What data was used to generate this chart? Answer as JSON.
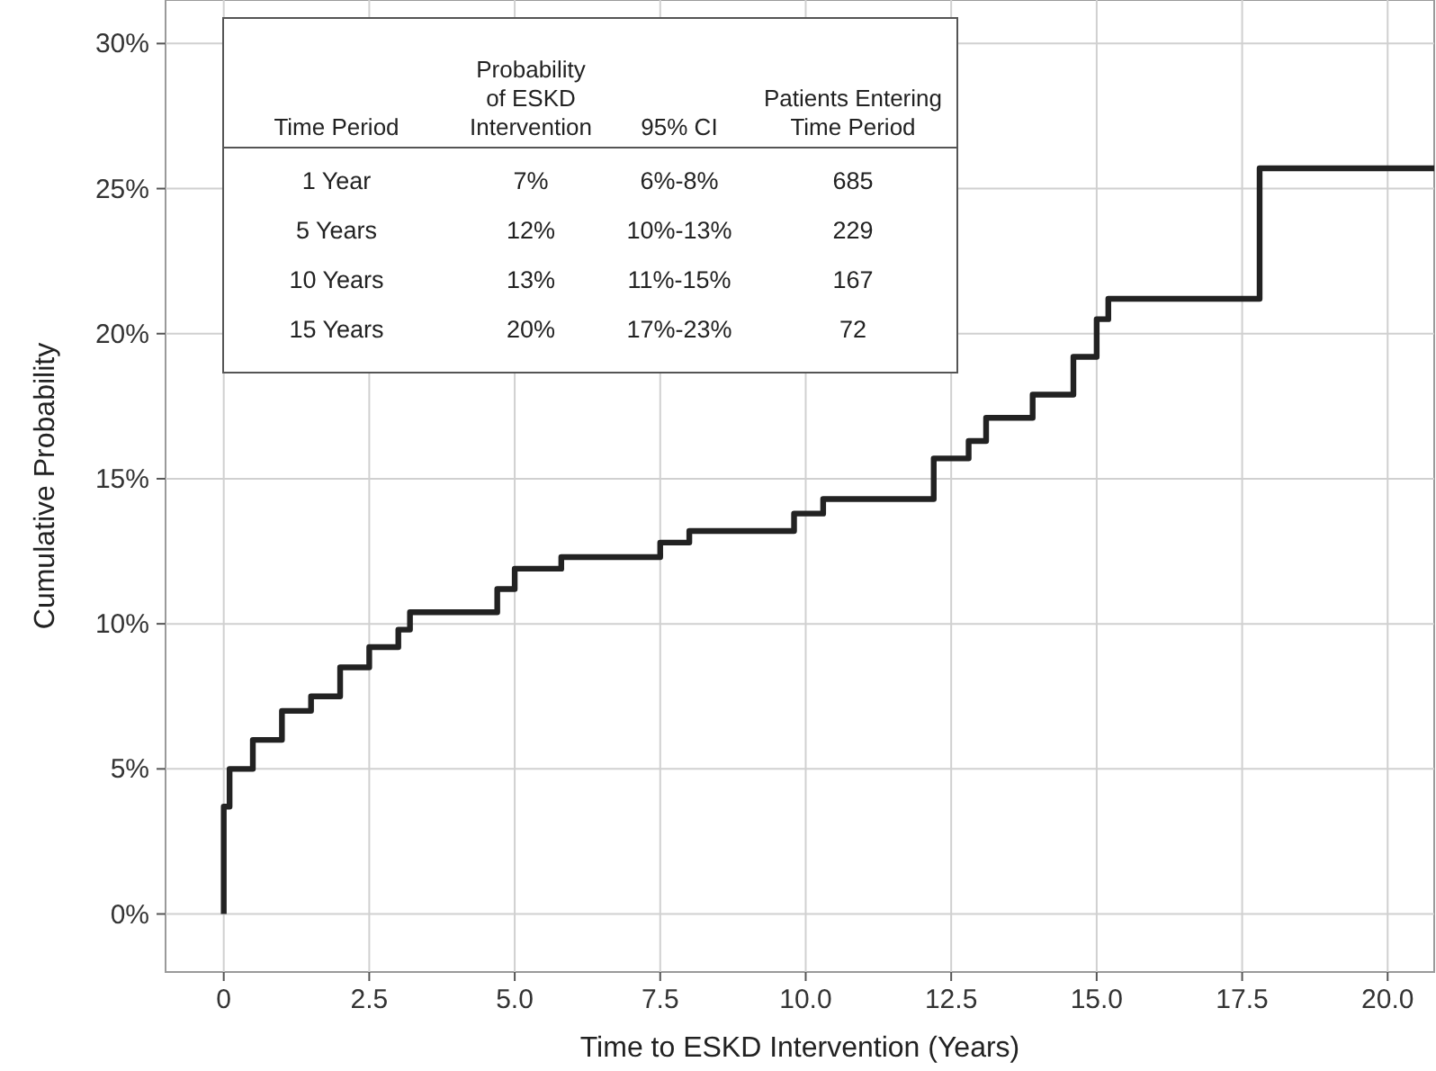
{
  "chart_data": {
    "type": "step",
    "xlabel": "Time to ESKD Intervention (Years)",
    "ylabel": "Cumulative Probability",
    "xlim": [
      -1.0,
      20.8
    ],
    "ylim": [
      -2,
      31.5
    ],
    "xticks": [
      {
        "value": 0,
        "label": "0"
      },
      2.5,
      {
        "value": 5,
        "label": "5.0"
      },
      7.5,
      {
        "value": 10,
        "label": "10.0"
      },
      12.5,
      {
        "value": 15,
        "label": "15.0"
      },
      17.5,
      {
        "value": 20,
        "label": "20.0"
      }
    ],
    "yticks": [
      {
        "value": 0,
        "label": "0%"
      },
      {
        "value": 5,
        "label": "5%"
      },
      {
        "value": 10,
        "label": "10%"
      },
      {
        "value": 15,
        "label": "15%"
      },
      {
        "value": 20,
        "label": "20%"
      },
      {
        "value": 25,
        "label": "25%"
      },
      {
        "value": 30,
        "label": "30%"
      }
    ],
    "grid": true,
    "line_style": "solid",
    "marker": "none",
    "series": [
      {
        "color": "#222222",
        "x": [
          0,
          0,
          0.1,
          0.5,
          1.0,
          1.5,
          2.0,
          2.5,
          3.0,
          3.2,
          4.7,
          5.0,
          5.8,
          7.5,
          8.0,
          9.8,
          10.3,
          12.2,
          12.8,
          13.1,
          13.9,
          14.6,
          15.0,
          15.2,
          17.8,
          20.8
        ],
        "values": [
          0,
          3.7,
          5.0,
          6.0,
          7.0,
          7.5,
          8.5,
          9.2,
          9.8,
          10.4,
          11.2,
          11.9,
          12.3,
          12.8,
          13.2,
          13.8,
          14.3,
          15.7,
          16.3,
          17.1,
          17.9,
          19.2,
          20.5,
          21.2,
          25.7,
          25.7
        ]
      }
    ],
    "annotations": [
      "Time Period",
      "Probability of ESKD Intervention",
      "95% CI",
      "Patients Entering Time Period",
      "1 Year",
      "7%",
      "6%-8%",
      "685",
      "5 Years",
      "12%",
      "10%-13%",
      "229",
      "10 Years",
      "13%",
      "11%-15%",
      "167",
      "15 Years",
      "20%",
      "17%-23%",
      "72"
    ]
  }
}
